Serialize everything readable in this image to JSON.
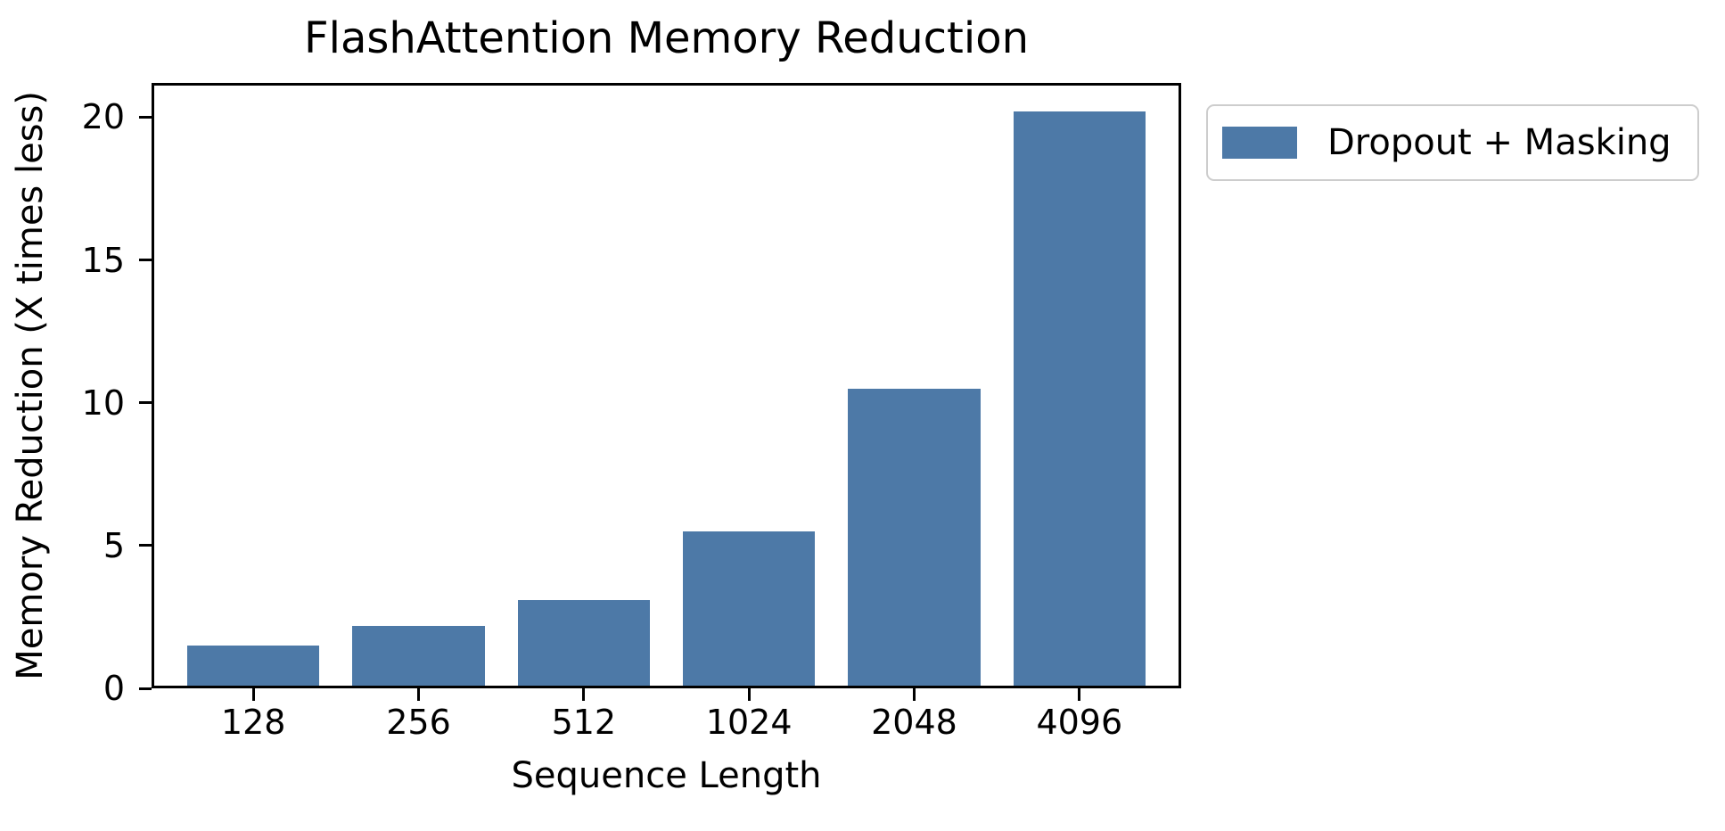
{
  "chart_data": {
    "type": "bar",
    "title": "FlashAttention Memory Reduction",
    "xlabel": "Sequence Length",
    "ylabel": "Memory Reduction (X times less)",
    "categories": [
      "128",
      "256",
      "512",
      "1024",
      "2048",
      "4096"
    ],
    "series": [
      {
        "name": "Dropout + Masking",
        "color": "#4d79a7",
        "values": [
          1.5,
          2.2,
          3.1,
          5.5,
          10.5,
          20.2
        ]
      }
    ],
    "yticks": [
      0,
      5,
      10,
      15,
      20
    ],
    "ylim": [
      0,
      21.2
    ],
    "grid": false,
    "legend_position": "outside-upper-right",
    "background_color": "#ffffff",
    "axis_color": "#000000",
    "bar_width_fraction": 0.8,
    "x_edge_margin_slots": 0.6
  }
}
